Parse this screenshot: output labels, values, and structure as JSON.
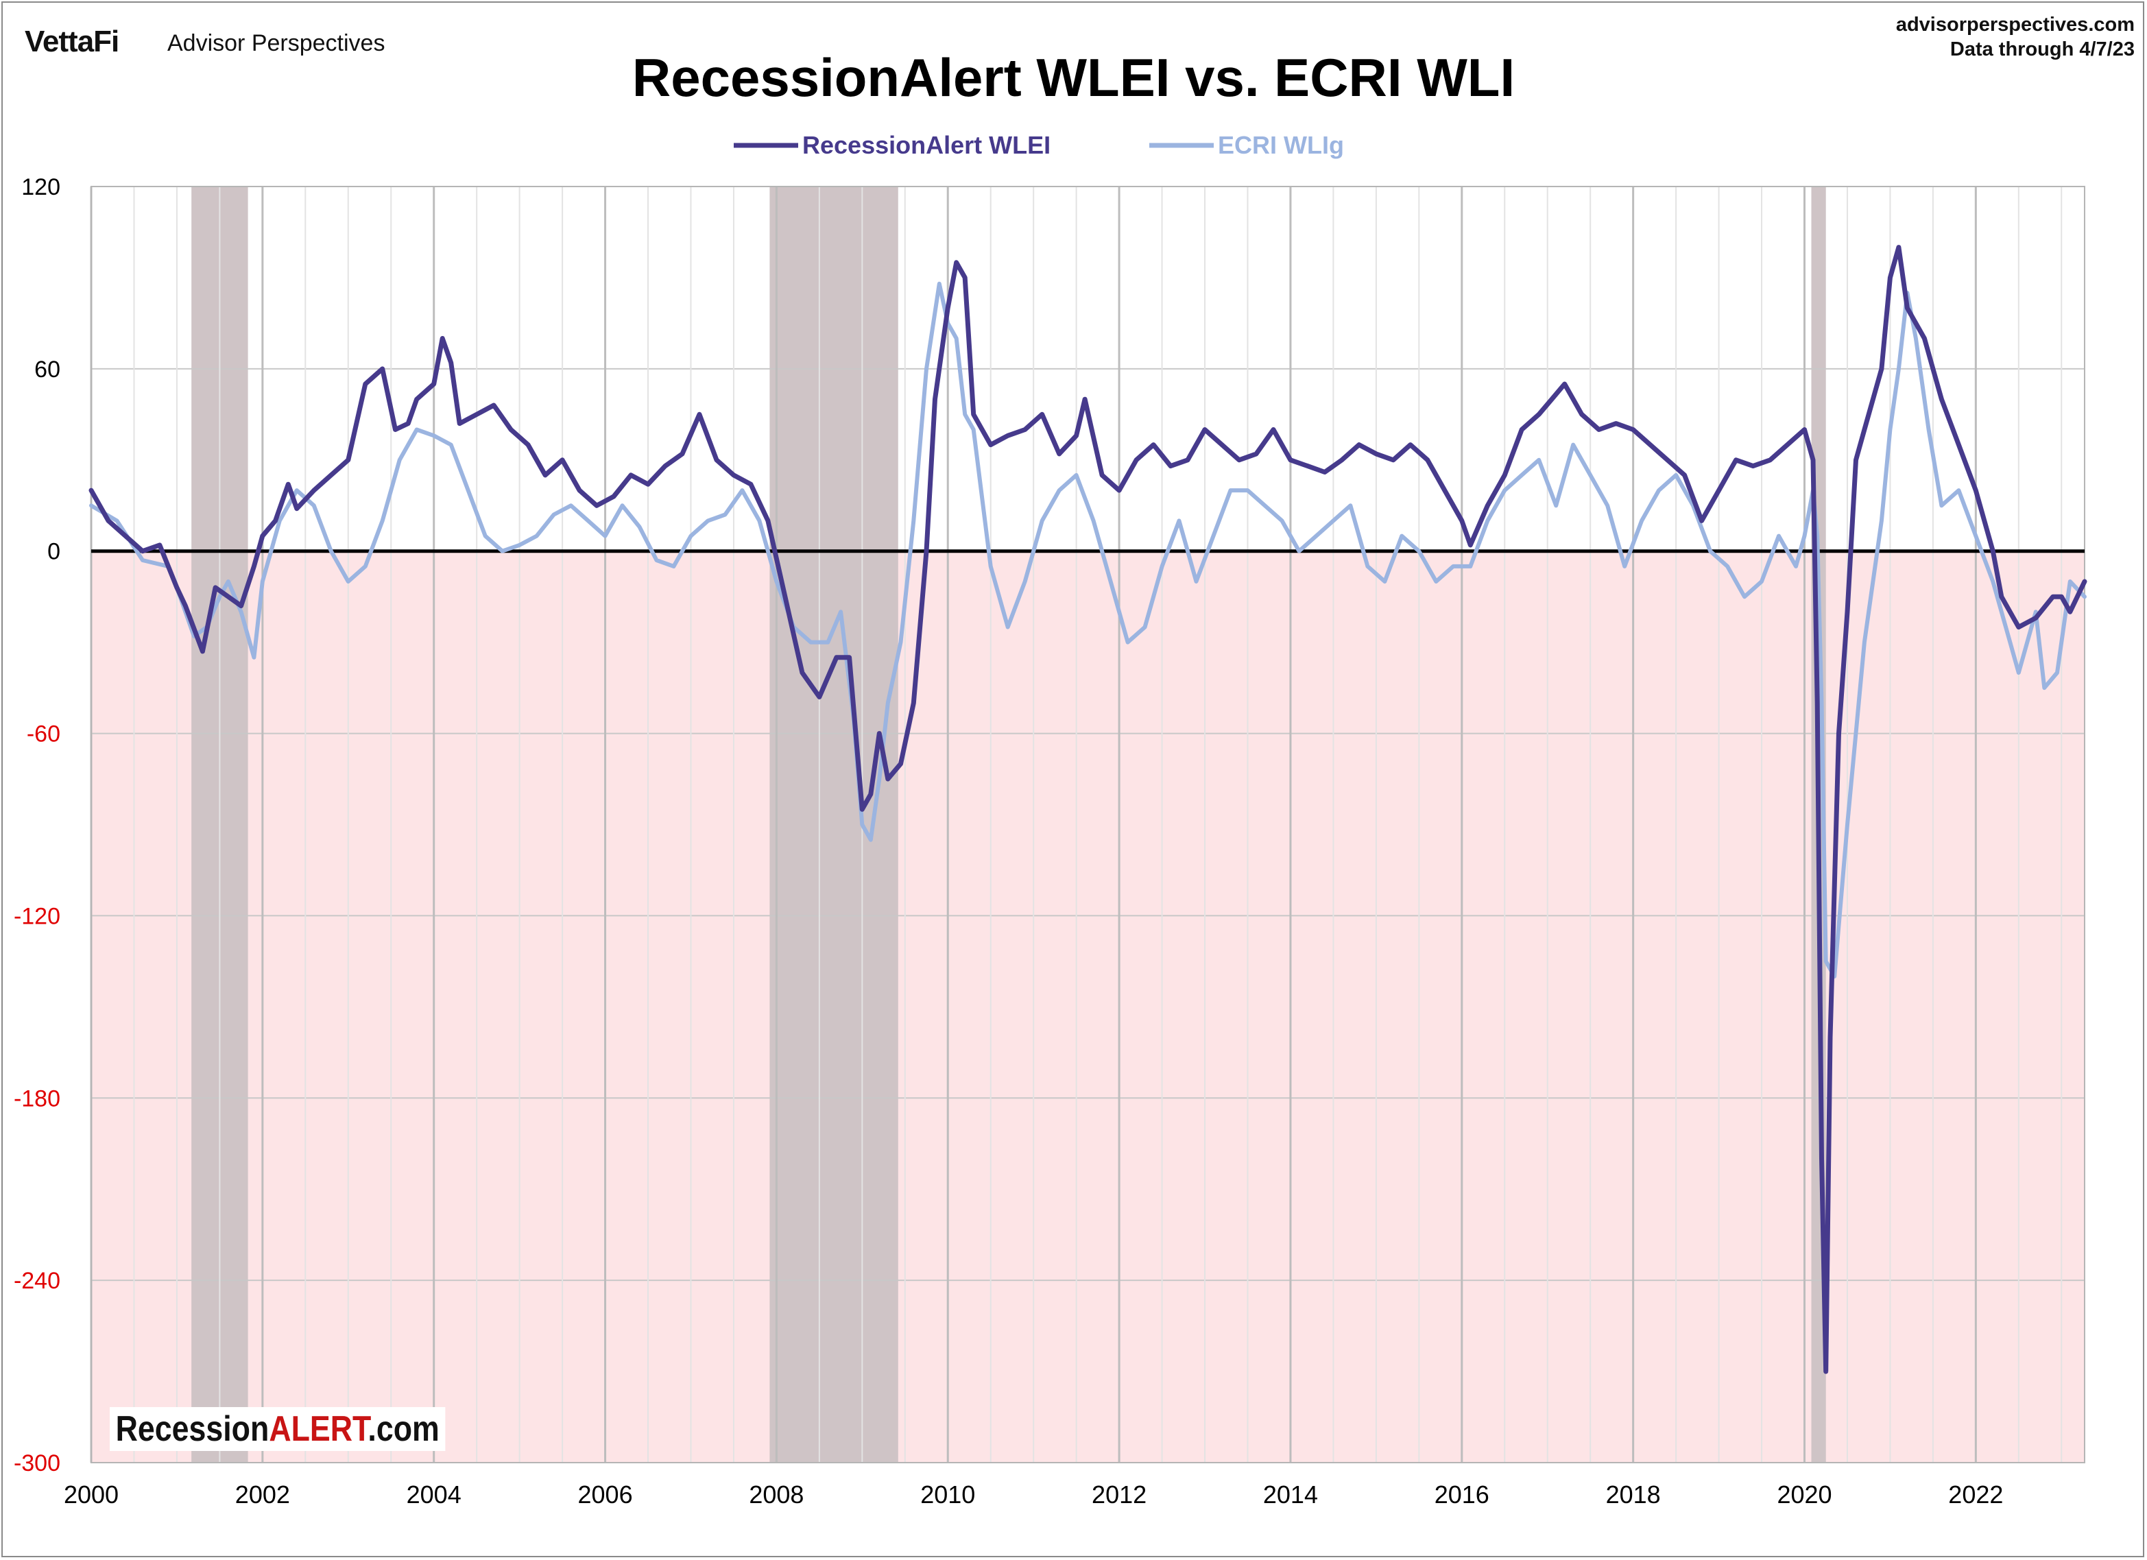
{
  "header": {
    "brand": "VettaFi",
    "brand_sub": "Advisor Perspectives",
    "source_line1": "advisorperspectives.com",
    "source_line2": "Data through  4/7/23"
  },
  "logo": {
    "part1": "Recession",
    "part2": "ALERT",
    "part3": ".com"
  },
  "colors": {
    "wlei": "#463a8c",
    "wli": "#9bb4e0",
    "negative_shade": "#fde4e6",
    "recession_shade": "#cfc4c6",
    "zero_line": "#000000",
    "negative_tick": "#e00000"
  },
  "chart_data": {
    "type": "line",
    "title": "RecessionAlert WLEI vs. ECRI WLI",
    "xlabel": "",
    "ylabel": "",
    "xlim": [
      2000.0,
      2023.27
    ],
    "ylim": [
      -300,
      120
    ],
    "y_ticks": [
      120,
      60,
      0,
      -60,
      -120,
      -180,
      -240,
      -300
    ],
    "x_ticks": [
      2000,
      2002,
      2004,
      2006,
      2008,
      2010,
      2012,
      2014,
      2016,
      2018,
      2020,
      2022
    ],
    "grid": true,
    "legend_position": "top-center",
    "negative_region_shaded": true,
    "recessions": [
      [
        2001.17,
        2001.83
      ],
      [
        2007.92,
        2009.42
      ],
      [
        2020.08,
        2020.25
      ]
    ],
    "series": [
      {
        "name": "RecessionAlert WLEI",
        "x": [
          2000.0,
          2000.2,
          2000.4,
          2000.6,
          2000.8,
          2001.0,
          2001.1,
          2001.3,
          2001.45,
          2001.6,
          2001.75,
          2001.9,
          2002.0,
          2002.15,
          2002.3,
          2002.4,
          2002.6,
          2002.8,
          2003.0,
          2003.2,
          2003.4,
          2003.55,
          2003.7,
          2003.8,
          2004.0,
          2004.1,
          2004.2,
          2004.3,
          2004.5,
          2004.7,
          2004.9,
          2005.1,
          2005.3,
          2005.5,
          2005.7,
          2005.9,
          2006.1,
          2006.3,
          2006.5,
          2006.7,
          2006.9,
          2007.1,
          2007.3,
          2007.5,
          2007.7,
          2007.9,
          2008.1,
          2008.3,
          2008.5,
          2008.7,
          2008.85,
          2009.0,
          2009.1,
          2009.2,
          2009.3,
          2009.45,
          2009.6,
          2009.75,
          2009.85,
          2010.0,
          2010.1,
          2010.2,
          2010.3,
          2010.5,
          2010.7,
          2010.9,
          2011.1,
          2011.3,
          2011.5,
          2011.6,
          2011.8,
          2012.0,
          2012.2,
          2012.4,
          2012.6,
          2012.8,
          2013.0,
          2013.2,
          2013.4,
          2013.6,
          2013.8,
          2014.0,
          2014.2,
          2014.4,
          2014.6,
          2014.8,
          2015.0,
          2015.2,
          2015.4,
          2015.6,
          2015.8,
          2016.0,
          2016.1,
          2016.3,
          2016.5,
          2016.7,
          2016.9,
          2017.05,
          2017.2,
          2017.4,
          2017.6,
          2017.8,
          2018.0,
          2018.2,
          2018.4,
          2018.6,
          2018.8,
          2019.0,
          2019.2,
          2019.4,
          2019.6,
          2019.8,
          2020.0,
          2020.1,
          2020.15,
          2020.2,
          2020.25,
          2020.3,
          2020.4,
          2020.5,
          2020.6,
          2020.7,
          2020.8,
          2020.9,
          2021.0,
          2021.1,
          2021.2,
          2021.3,
          2021.4,
          2021.5,
          2021.6,
          2021.8,
          2022.0,
          2022.2,
          2022.3,
          2022.5,
          2022.7,
          2022.9,
          2023.0,
          2023.1,
          2023.27
        ],
        "y": [
          20,
          10,
          5,
          0,
          2,
          -12,
          -18,
          -33,
          -12,
          -15,
          -18,
          -5,
          5,
          10,
          22,
          14,
          20,
          25,
          30,
          55,
          60,
          40,
          42,
          50,
          55,
          70,
          62,
          42,
          45,
          48,
          40,
          35,
          25,
          30,
          20,
          15,
          18,
          25,
          22,
          28,
          32,
          45,
          30,
          25,
          22,
          10,
          -15,
          -40,
          -48,
          -35,
          -35,
          -85,
          -80,
          -60,
          -75,
          -70,
          -50,
          0,
          50,
          80,
          95,
          90,
          45,
          35,
          38,
          40,
          45,
          32,
          38,
          50,
          25,
          20,
          30,
          35,
          28,
          30,
          40,
          35,
          30,
          32,
          40,
          30,
          28,
          26,
          30,
          35,
          32,
          30,
          35,
          30,
          20,
          10,
          2,
          15,
          25,
          40,
          45,
          50,
          55,
          45,
          40,
          42,
          40,
          35,
          30,
          25,
          10,
          20,
          30,
          28,
          30,
          35,
          40,
          30,
          -50,
          -200,
          -270,
          -160,
          -60,
          -20,
          30,
          40,
          50,
          60,
          90,
          100,
          80,
          75,
          70,
          60,
          50,
          35,
          20,
          0,
          -15,
          -25,
          -22,
          -15,
          -15,
          -20,
          -10
        ]
      },
      {
        "name": "ECRI WLIg",
        "x": [
          2000.0,
          2000.3,
          2000.6,
          2000.9,
          2001.0,
          2001.2,
          2001.35,
          2001.5,
          2001.6,
          2001.75,
          2001.9,
          2002.0,
          2002.2,
          2002.4,
          2002.6,
          2002.8,
          2003.0,
          2003.2,
          2003.4,
          2003.6,
          2003.8,
          2004.0,
          2004.2,
          2004.4,
          2004.6,
          2004.8,
          2005.0,
          2005.2,
          2005.4,
          2005.6,
          2005.8,
          2006.0,
          2006.2,
          2006.4,
          2006.6,
          2006.8,
          2007.0,
          2007.2,
          2007.4,
          2007.6,
          2007.8,
          2008.0,
          2008.2,
          2008.4,
          2008.6,
          2008.75,
          2008.9,
          2009.0,
          2009.1,
          2009.2,
          2009.3,
          2009.45,
          2009.6,
          2009.75,
          2009.9,
          2010.0,
          2010.1,
          2010.2,
          2010.3,
          2010.5,
          2010.7,
          2010.9,
          2011.1,
          2011.3,
          2011.5,
          2011.7,
          2011.9,
          2012.1,
          2012.3,
          2012.5,
          2012.7,
          2012.9,
          2013.1,
          2013.3,
          2013.5,
          2013.7,
          2013.9,
          2014.1,
          2014.3,
          2014.5,
          2014.7,
          2014.9,
          2015.1,
          2015.3,
          2015.5,
          2015.7,
          2015.9,
          2016.1,
          2016.3,
          2016.5,
          2016.7,
          2016.9,
          2017.1,
          2017.3,
          2017.5,
          2017.7,
          2017.9,
          2018.1,
          2018.3,
          2018.5,
          2018.7,
          2018.9,
          2019.1,
          2019.3,
          2019.5,
          2019.7,
          2019.9,
          2020.0,
          2020.1,
          2020.15,
          2020.2,
          2020.25,
          2020.35,
          2020.5,
          2020.7,
          2020.9,
          2021.0,
          2021.1,
          2021.2,
          2021.3,
          2021.45,
          2021.6,
          2021.8,
          2022.0,
          2022.2,
          2022.4,
          2022.5,
          2022.7,
          2022.8,
          2022.95,
          2023.1,
          2023.27
        ],
        "y": [
          15,
          10,
          -3,
          -5,
          -12,
          -28,
          -25,
          -15,
          -10,
          -20,
          -35,
          -10,
          10,
          20,
          15,
          0,
          -10,
          -5,
          10,
          30,
          40,
          38,
          35,
          20,
          5,
          0,
          2,
          5,
          12,
          15,
          10,
          5,
          15,
          8,
          -3,
          -5,
          5,
          10,
          12,
          20,
          10,
          -10,
          -25,
          -30,
          -30,
          -20,
          -55,
          -90,
          -95,
          -75,
          -50,
          -30,
          10,
          60,
          88,
          75,
          70,
          45,
          40,
          -5,
          -25,
          -10,
          10,
          20,
          25,
          10,
          -10,
          -30,
          -25,
          -5,
          10,
          -10,
          5,
          20,
          20,
          15,
          10,
          0,
          5,
          10,
          15,
          -5,
          -10,
          5,
          0,
          -10,
          -5,
          -5,
          10,
          20,
          25,
          30,
          15,
          35,
          25,
          15,
          -5,
          10,
          20,
          25,
          15,
          0,
          -5,
          -15,
          -10,
          5,
          -5,
          5,
          20,
          5,
          -50,
          -135,
          -140,
          -90,
          -30,
          10,
          40,
          60,
          85,
          70,
          40,
          15,
          20,
          5,
          -10,
          -30,
          -40,
          -20,
          -45,
          -40,
          -10,
          -15
        ]
      }
    ]
  }
}
